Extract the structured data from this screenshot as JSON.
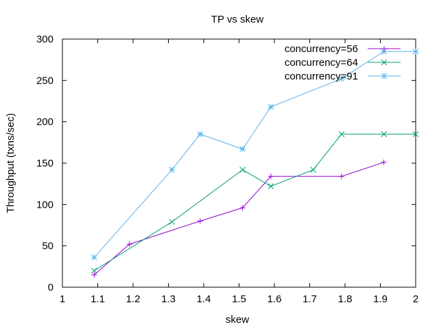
{
  "chart_data": {
    "type": "line",
    "title": "TP vs skew",
    "xlabel": "skew",
    "ylabel": "Throughput (txns/sec)",
    "xlim": [
      1,
      2
    ],
    "ylim": [
      0,
      300
    ],
    "x_ticks": [
      1,
      1.1,
      1.2,
      1.3,
      1.4,
      1.5,
      1.6,
      1.7,
      1.8,
      1.9,
      2
    ],
    "x_tick_labels": [
      "1",
      "1.1",
      "1.2",
      "1.3",
      "1.4",
      "1.5",
      "1.6",
      "1.7",
      "1.8",
      "1.9",
      "2"
    ],
    "y_ticks": [
      0,
      50,
      100,
      150,
      200,
      250,
      300
    ],
    "y_tick_labels": [
      "0",
      "50",
      "100",
      "150",
      "200",
      "250",
      "300"
    ],
    "grid": false,
    "legend_position": "top-right",
    "series": [
      {
        "name": "concurrency=56",
        "color": "#9400d3",
        "marker": "plus",
        "points": [
          [
            1.09,
            15
          ],
          [
            1.19,
            52
          ],
          [
            1.39,
            80
          ],
          [
            1.51,
            96
          ],
          [
            1.59,
            134
          ],
          [
            1.79,
            134
          ],
          [
            1.91,
            151
          ]
        ]
      },
      {
        "name": "concurrency=64",
        "color": "#009e73",
        "marker": "cross",
        "points": [
          [
            1.09,
            20
          ],
          [
            1.31,
            79
          ],
          [
            1.51,
            142
          ],
          [
            1.59,
            122
          ],
          [
            1.71,
            142
          ],
          [
            1.79,
            185
          ],
          [
            1.91,
            185
          ],
          [
            2.0,
            185
          ]
        ]
      },
      {
        "name": "concurrency=91",
        "color": "#56b4e9",
        "marker": "star",
        "points": [
          [
            1.09,
            36
          ],
          [
            1.31,
            142
          ],
          [
            1.39,
            185
          ],
          [
            1.51,
            167
          ],
          [
            1.59,
            218
          ],
          [
            1.79,
            252
          ],
          [
            1.91,
            285
          ],
          [
            2.0,
            285
          ]
        ]
      }
    ]
  }
}
